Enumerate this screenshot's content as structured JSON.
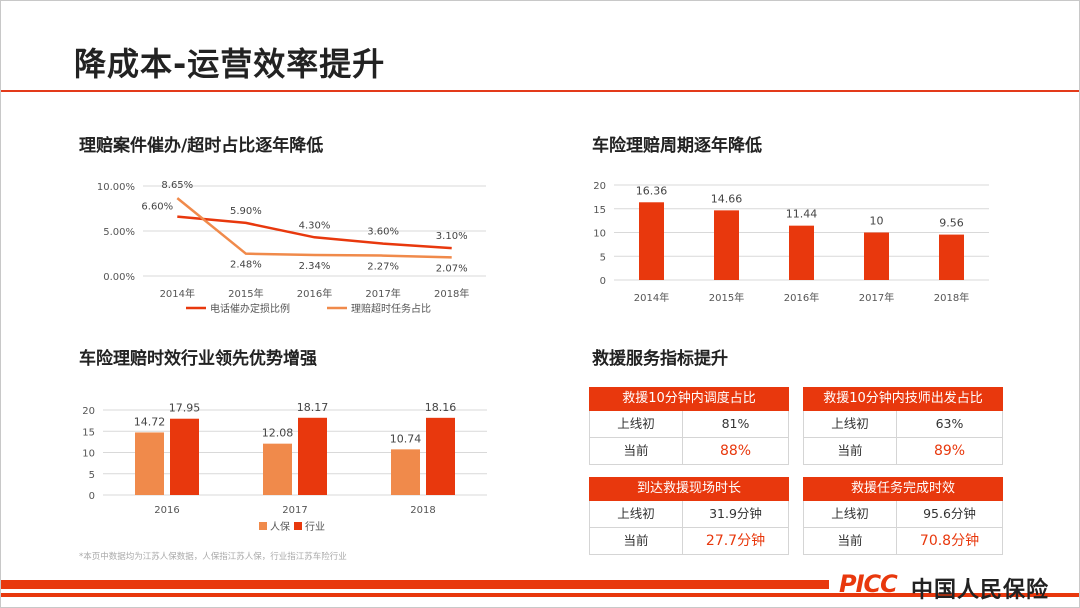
{
  "page": {
    "title": "降成本-运营效率提升",
    "footnote": "*本页中数据均为江苏人保数据，人保指江苏人保，行业指江苏车险行业",
    "logo_text": "PICC",
    "logo_cn": "中国人民保险"
  },
  "colors": {
    "accent": "#e8380d",
    "light": "#f08a4b"
  },
  "chart_data": [
    {
      "type": "line",
      "title": "理赔案件催办/超时占比逐年降低",
      "categories": [
        "2014年",
        "2015年",
        "2016年",
        "2017年",
        "2018年"
      ],
      "y_ticks": [
        "10.00%",
        "5.00%",
        "0.00%"
      ],
      "ylim": [
        0,
        10
      ],
      "series": [
        {
          "name": "电话催办定损比例",
          "values": [
            6.6,
            5.9,
            4.3,
            3.6,
            3.1
          ],
          "labels": [
            "6.60%",
            "5.90%",
            "4.30%",
            "3.60%",
            "3.10%"
          ]
        },
        {
          "name": "理赔超时任务占比",
          "values": [
            8.65,
            2.48,
            2.34,
            2.27,
            2.07
          ],
          "labels": [
            "8.65%",
            "2.48%",
            "2.34%",
            "2.27%",
            "2.07%"
          ]
        }
      ]
    },
    {
      "type": "bar",
      "title": "车险理赔周期逐年降低",
      "categories": [
        "2014年",
        "2015年",
        "2016年",
        "2017年",
        "2018年"
      ],
      "values": [
        16.36,
        14.66,
        11.44,
        10,
        9.56
      ],
      "labels": [
        "16.36",
        "14.66",
        "11.44",
        "10",
        "9.56"
      ],
      "y_ticks": [
        "20",
        "15",
        "10",
        "5",
        "0"
      ],
      "ylim": [
        0,
        20
      ]
    },
    {
      "type": "bar",
      "title": "车险理赔时效行业领先优势增强",
      "categories": [
        "2016",
        "2017",
        "2018"
      ],
      "y_ticks": [
        "20",
        "15",
        "10",
        "5",
        "0"
      ],
      "ylim": [
        0,
        20
      ],
      "series": [
        {
          "name": "人保",
          "values": [
            14.72,
            12.08,
            10.74
          ],
          "labels": [
            "14.72",
            "12.08",
            "10.74"
          ]
        },
        {
          "name": "行业",
          "values": [
            17.95,
            18.17,
            18.16
          ],
          "labels": [
            "17.95",
            "18.17",
            "18.16"
          ]
        }
      ]
    }
  ],
  "rescue": {
    "title": "救援服务指标提升",
    "tables": [
      {
        "header": "救援10分钟内调度占比",
        "rows": [
          {
            "label": "上线初",
            "value": "81%"
          },
          {
            "label": "当前",
            "value": "88%"
          }
        ]
      },
      {
        "header": "救援10分钟内技师出发占比",
        "rows": [
          {
            "label": "上线初",
            "value": "63%"
          },
          {
            "label": "当前",
            "value": "89%"
          }
        ]
      },
      {
        "header": "到达救援现场时长",
        "rows": [
          {
            "label": "上线初",
            "value": "31.9分钟"
          },
          {
            "label": "当前",
            "value": "27.7分钟"
          }
        ]
      },
      {
        "header": "救援任务完成时效",
        "rows": [
          {
            "label": "上线初",
            "value": "95.6分钟"
          },
          {
            "label": "当前",
            "value": "70.8分钟"
          }
        ]
      }
    ]
  }
}
